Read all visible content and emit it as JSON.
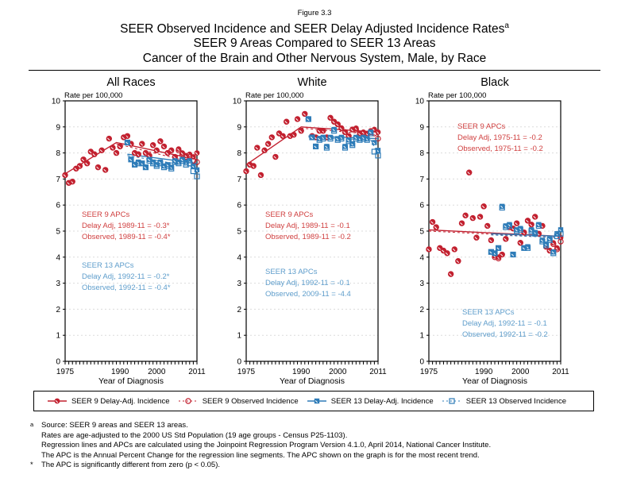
{
  "figure_label": "Figure 3.3",
  "title": {
    "line1": "SEER Observed Incidence and SEER Delay Adjusted Incidence Rates",
    "line1_sup": "a",
    "line2": "SEER 9 Areas Compared to SEER 13 Areas",
    "line3": "Cancer of the Brain and Other Nervous System, Male, by Race"
  },
  "axes": {
    "y_title": "Rate per 100,000",
    "x_label": "Year of Diagnosis",
    "y_ticks": [
      0,
      1,
      2,
      3,
      4,
      5,
      6,
      7,
      8,
      9,
      10
    ],
    "x_tick_years": [
      1975,
      1990,
      2000,
      2011
    ],
    "x_tick_labels": [
      "1975",
      "1990",
      "2000",
      "2011"
    ],
    "x_range": [
      1975,
      2011
    ],
    "y_range": [
      0,
      10
    ],
    "grid": "horizontal-dashed"
  },
  "colors": {
    "seer9": "#C2202F",
    "seer9_text": "#D04040",
    "seer13": "#2E7CB8",
    "seer13_text": "#5E9DCB",
    "grid": "#DCDCDC",
    "frame": "#000000"
  },
  "legend": [
    {
      "label": "SEER 9 Delay-Adj. Incidence",
      "marker": "circle-filled",
      "line": "solid",
      "color_key": "seer9"
    },
    {
      "label": "SEER 9 Observed Incidence",
      "marker": "circle-open",
      "line": "dotted",
      "color_key": "seer9"
    },
    {
      "label": "SEER 13 Delay-Adj. Incidence",
      "marker": "square-filled",
      "line": "solid",
      "color_key": "seer13"
    },
    {
      "label": "SEER 13 Observed Incidence",
      "marker": "square-open",
      "line": "dotted",
      "color_key": "seer13"
    }
  ],
  "footnotes": [
    {
      "marker": "a",
      "lines": [
        "Source: SEER 9 areas and SEER 13 areas.",
        "Rates are age-adjusted to the 2000 US Std Population (19 age groups - Census P25-1103).",
        "Regression lines and APCs are calculated using the Joinpoint Regression Program Version 4.1.0, April 2014, National Cancer Institute.",
        "The APC is the Annual Percent Change for the regression line segments. The APC shown on the graph is for the most recent trend."
      ]
    },
    {
      "marker": "*",
      "lines": [
        "The APC is significantly different from zero (p < 0.05)."
      ]
    }
  ],
  "chart_data": [
    {
      "type": "scatter",
      "title": "All Races",
      "xlabel": "Year of Diagnosis",
      "ylabel": "Rate per 100,000",
      "xlim": [
        1975,
        2011
      ],
      "ylim": [
        0,
        10
      ],
      "annotations": {
        "seer9": {
          "lines": [
            "SEER 9 APCs",
            "Delay Adj, 1989-11 = -0.3*",
            "Observed, 1989-11 = -0.4*"
          ],
          "pos": {
            "left": 63,
            "top": 168
          }
        },
        "seer13": {
          "lines": [
            "SEER 13 APCs",
            "Delay Adj, 1992-11 = -0.2*",
            "Observed, 1992-11 = -0.4*"
          ],
          "pos": {
            "left": 63,
            "top": 232
          }
        }
      },
      "series": [
        {
          "name": "SEER 9 Delay-Adj. Incidence",
          "marker": "circle-filled",
          "color_key": "seer9",
          "start_year": 1975,
          "values": [
            7.15,
            6.85,
            6.9,
            7.4,
            7.5,
            7.75,
            7.6,
            8.05,
            7.95,
            7.45,
            8.1,
            7.35,
            8.55,
            8.2,
            8.0,
            8.25,
            8.6,
            8.65,
            8.35,
            8.0,
            7.95,
            8.35,
            8.0,
            7.9,
            8.3,
            8.1,
            8.45,
            8.25,
            8.0,
            8.1,
            7.85,
            8.15,
            8.0,
            7.9,
            7.95,
            7.85,
            8.0
          ]
        },
        {
          "name": "SEER 9 Observed Incidence",
          "marker": "circle-open",
          "color_key": "seer9",
          "start_year": 1975,
          "values": [
            7.15,
            6.85,
            6.9,
            7.4,
            7.5,
            7.75,
            7.6,
            8.05,
            7.95,
            7.45,
            8.1,
            7.35,
            8.55,
            8.2,
            8.0,
            8.25,
            8.6,
            8.65,
            8.35,
            8.0,
            7.95,
            8.35,
            8.0,
            7.9,
            8.3,
            8.1,
            8.45,
            8.25,
            8.0,
            8.1,
            7.85,
            8.1,
            7.95,
            7.85,
            7.85,
            7.7,
            7.65
          ]
        },
        {
          "name": "SEER 13 Delay-Adj. Incidence",
          "marker": "square-filled",
          "color_key": "seer13",
          "start_year": 1992,
          "values": [
            8.4,
            7.75,
            7.55,
            7.65,
            7.6,
            7.45,
            7.75,
            7.65,
            7.55,
            7.65,
            7.5,
            7.55,
            7.45,
            7.7,
            7.65,
            7.75,
            7.65,
            7.7,
            7.5,
            7.35
          ]
        },
        {
          "name": "SEER 13 Observed Incidence",
          "marker": "square-open",
          "color_key": "seer13",
          "start_year": 1992,
          "values": [
            8.4,
            7.75,
            7.55,
            7.6,
            7.6,
            7.45,
            7.7,
            7.6,
            7.5,
            7.6,
            7.45,
            7.5,
            7.4,
            7.65,
            7.6,
            7.7,
            7.55,
            7.6,
            7.3,
            7.1
          ]
        }
      ],
      "trend_lines": [
        {
          "name": "seer9-delay-trend",
          "style": "solid",
          "color_key": "seer9",
          "points": [
            [
              1975,
              7.2
            ],
            [
              1989,
              8.4
            ],
            [
              2011,
              7.75
            ]
          ]
        },
        {
          "name": "seer9-observed-trend",
          "style": "dashed",
          "color_key": "seer9",
          "points": [
            [
              1989,
              8.35
            ],
            [
              2011,
              7.6
            ]
          ]
        },
        {
          "name": "seer13-delay-trend",
          "style": "solid",
          "color_key": "seer13",
          "points": [
            [
              1992,
              7.95
            ],
            [
              2011,
              7.6
            ]
          ]
        },
        {
          "name": "seer13-observed-trend",
          "style": "dashed",
          "color_key": "seer13",
          "points": [
            [
              1992,
              7.9
            ],
            [
              2011,
              7.45
            ]
          ]
        }
      ]
    },
    {
      "type": "scatter",
      "title": "White",
      "xlabel": "Year of Diagnosis",
      "ylabel": "Rate per 100,000",
      "xlim": [
        1975,
        2011
      ],
      "ylim": [
        0,
        10
      ],
      "annotations": {
        "seer9": {
          "lines": [
            "SEER 9 APCs",
            "Delay Adj, 1989-11 = -0.1",
            "Observed, 1989-11 = -0.2"
          ],
          "pos": {
            "left": 66,
            "top": 168
          }
        },
        "seer13": {
          "lines": [
            "SEER 13 APCs",
            "Delay Adj, 1992-11 = -0.1",
            "Observed, 2009-11 = -4.4"
          ],
          "pos": {
            "left": 66,
            "top": 240
          }
        }
      },
      "series": [
        {
          "name": "SEER 9 Delay-Adj. Incidence",
          "marker": "circle-filled",
          "color_key": "seer9",
          "start_year": 1975,
          "values": [
            7.3,
            7.55,
            7.5,
            8.2,
            7.15,
            8.1,
            8.35,
            8.6,
            7.85,
            8.75,
            8.65,
            9.2,
            8.65,
            8.7,
            9.3,
            8.85,
            9.5,
            9.3,
            8.65,
            8.6,
            8.85,
            8.85,
            8.6,
            9.35,
            9.2,
            9.1,
            8.95,
            8.8,
            8.65,
            8.9,
            8.95,
            8.75,
            8.8,
            8.75,
            8.85,
            8.9,
            8.8
          ]
        },
        {
          "name": "SEER 9 Observed Incidence",
          "marker": "circle-open",
          "color_key": "seer9",
          "start_year": 1975,
          "values": [
            7.3,
            7.55,
            7.5,
            8.2,
            7.15,
            8.1,
            8.35,
            8.6,
            7.85,
            8.75,
            8.65,
            9.2,
            8.65,
            8.7,
            9.3,
            8.85,
            9.5,
            9.3,
            8.65,
            8.6,
            8.85,
            8.85,
            8.6,
            9.35,
            9.2,
            9.1,
            8.95,
            8.8,
            8.65,
            8.9,
            8.9,
            8.7,
            8.75,
            8.7,
            8.8,
            8.75,
            8.55
          ]
        },
        {
          "name": "SEER 13 Delay-Adj. Incidence",
          "marker": "square-filled",
          "color_key": "seer13",
          "start_year": 1992,
          "values": [
            9.3,
            8.6,
            8.25,
            8.55,
            8.6,
            8.25,
            8.6,
            8.9,
            8.55,
            8.6,
            8.25,
            8.5,
            8.35,
            8.6,
            8.55,
            8.6,
            8.55,
            8.8,
            8.4,
            8.1
          ]
        },
        {
          "name": "SEER 13 Observed Incidence",
          "marker": "square-open",
          "color_key": "seer13",
          "start_year": 1992,
          "values": [
            9.3,
            8.6,
            8.25,
            8.5,
            8.55,
            8.2,
            8.55,
            8.85,
            8.5,
            8.55,
            8.2,
            8.45,
            8.3,
            8.55,
            8.5,
            8.55,
            8.5,
            8.75,
            8.05,
            7.9
          ]
        }
      ],
      "trend_lines": [
        {
          "name": "seer9-delay-trend",
          "style": "solid",
          "color_key": "seer9",
          "points": [
            [
              1975,
              7.55
            ],
            [
              1990,
              9.0
            ],
            [
              2011,
              8.8
            ]
          ]
        },
        {
          "name": "seer9-observed-trend",
          "style": "dashed",
          "color_key": "seer9",
          "points": [
            [
              1990,
              8.95
            ],
            [
              2011,
              8.7
            ]
          ]
        },
        {
          "name": "seer13-delay-trend",
          "style": "solid",
          "color_key": "seer13",
          "points": [
            [
              1992,
              8.65
            ],
            [
              2011,
              8.55
            ]
          ]
        },
        {
          "name": "seer13-observed-trend",
          "style": "dashed",
          "color_key": "seer13",
          "points": [
            [
              1992,
              8.6
            ],
            [
              2009,
              8.5
            ],
            [
              2011,
              7.95
            ]
          ]
        }
      ]
    },
    {
      "type": "scatter",
      "title": "Black",
      "xlabel": "Year of Diagnosis",
      "ylabel": "Rate per 100,000",
      "xlim": [
        1975,
        2011
      ],
      "ylim": [
        0,
        10
      ],
      "annotations": {
        "seer9": {
          "lines": [
            "SEER 9 APCs",
            "Delay Adj, 1975-11 = -0.2",
            "Observed, 1975-11 = -0.2"
          ],
          "pos": {
            "left": 78,
            "top": 57
          }
        },
        "seer13": {
          "lines": [
            "SEER 13 APCs",
            "Delay Adj, 1992-11 = -0.1",
            "Observed, 1992-11 = -0.2"
          ],
          "pos": {
            "left": 84,
            "top": 291
          }
        }
      },
      "series": [
        {
          "name": "SEER 9 Delay-Adj. Incidence",
          "marker": "circle-filled",
          "color_key": "seer9",
          "start_year": 1975,
          "values": [
            4.3,
            5.35,
            5.15,
            4.35,
            4.25,
            4.15,
            3.35,
            4.3,
            3.85,
            5.3,
            5.6,
            7.25,
            5.5,
            4.75,
            5.55,
            5.95,
            5.2,
            4.65,
            4.05,
            4.0,
            4.1,
            4.7,
            5.15,
            5.1,
            5.3,
            4.55,
            4.95,
            5.4,
            5.25,
            5.55,
            4.9,
            5.2,
            4.4,
            4.25,
            4.55,
            4.35,
            4.75
          ]
        },
        {
          "name": "SEER 9 Observed Incidence",
          "marker": "circle-open",
          "color_key": "seer9",
          "start_year": 1975,
          "values": [
            4.3,
            5.35,
            5.15,
            4.35,
            4.25,
            4.15,
            3.35,
            4.3,
            3.85,
            5.3,
            5.6,
            7.25,
            5.5,
            4.75,
            5.55,
            5.95,
            5.2,
            4.65,
            4.0,
            3.95,
            4.1,
            4.7,
            5.15,
            5.1,
            5.3,
            4.55,
            4.95,
            5.4,
            5.25,
            5.55,
            4.9,
            5.2,
            4.4,
            4.25,
            4.5,
            4.3,
            4.6
          ]
        },
        {
          "name": "SEER 13 Delay-Adj. Incidence",
          "marker": "square-filled",
          "color_key": "seer13",
          "start_year": 1992,
          "values": [
            4.2,
            4.15,
            4.35,
            5.95,
            5.2,
            5.25,
            4.1,
            5.05,
            5.1,
            4.35,
            4.4,
            5.05,
            4.95,
            5.25,
            4.65,
            4.5,
            4.7,
            4.2,
            4.9,
            5.05
          ]
        },
        {
          "name": "SEER 13 Observed Incidence",
          "marker": "square-open",
          "color_key": "seer13",
          "start_year": 1992,
          "values": [
            4.2,
            4.15,
            4.35,
            5.9,
            5.15,
            5.2,
            4.1,
            5.0,
            5.05,
            4.35,
            4.35,
            5.0,
            4.9,
            5.2,
            4.6,
            4.45,
            4.65,
            4.15,
            4.8,
            4.9
          ]
        }
      ],
      "trend_lines": [
        {
          "name": "seer9-delay-trend",
          "style": "solid",
          "color_key": "seer9",
          "points": [
            [
              1975,
              5.05
            ],
            [
              2011,
              4.8
            ]
          ]
        },
        {
          "name": "seer9-observed-trend",
          "style": "dashed",
          "color_key": "seer9",
          "points": [
            [
              1975,
              5.0
            ],
            [
              2011,
              4.75
            ]
          ]
        },
        {
          "name": "seer13-delay-trend",
          "style": "solid",
          "color_key": "seer13",
          "points": [
            [
              1992,
              4.9
            ],
            [
              2011,
              4.8
            ]
          ]
        },
        {
          "name": "seer13-observed-trend",
          "style": "dashed",
          "color_key": "seer13",
          "points": [
            [
              1992,
              4.85
            ],
            [
              2011,
              4.75
            ]
          ]
        }
      ]
    }
  ]
}
